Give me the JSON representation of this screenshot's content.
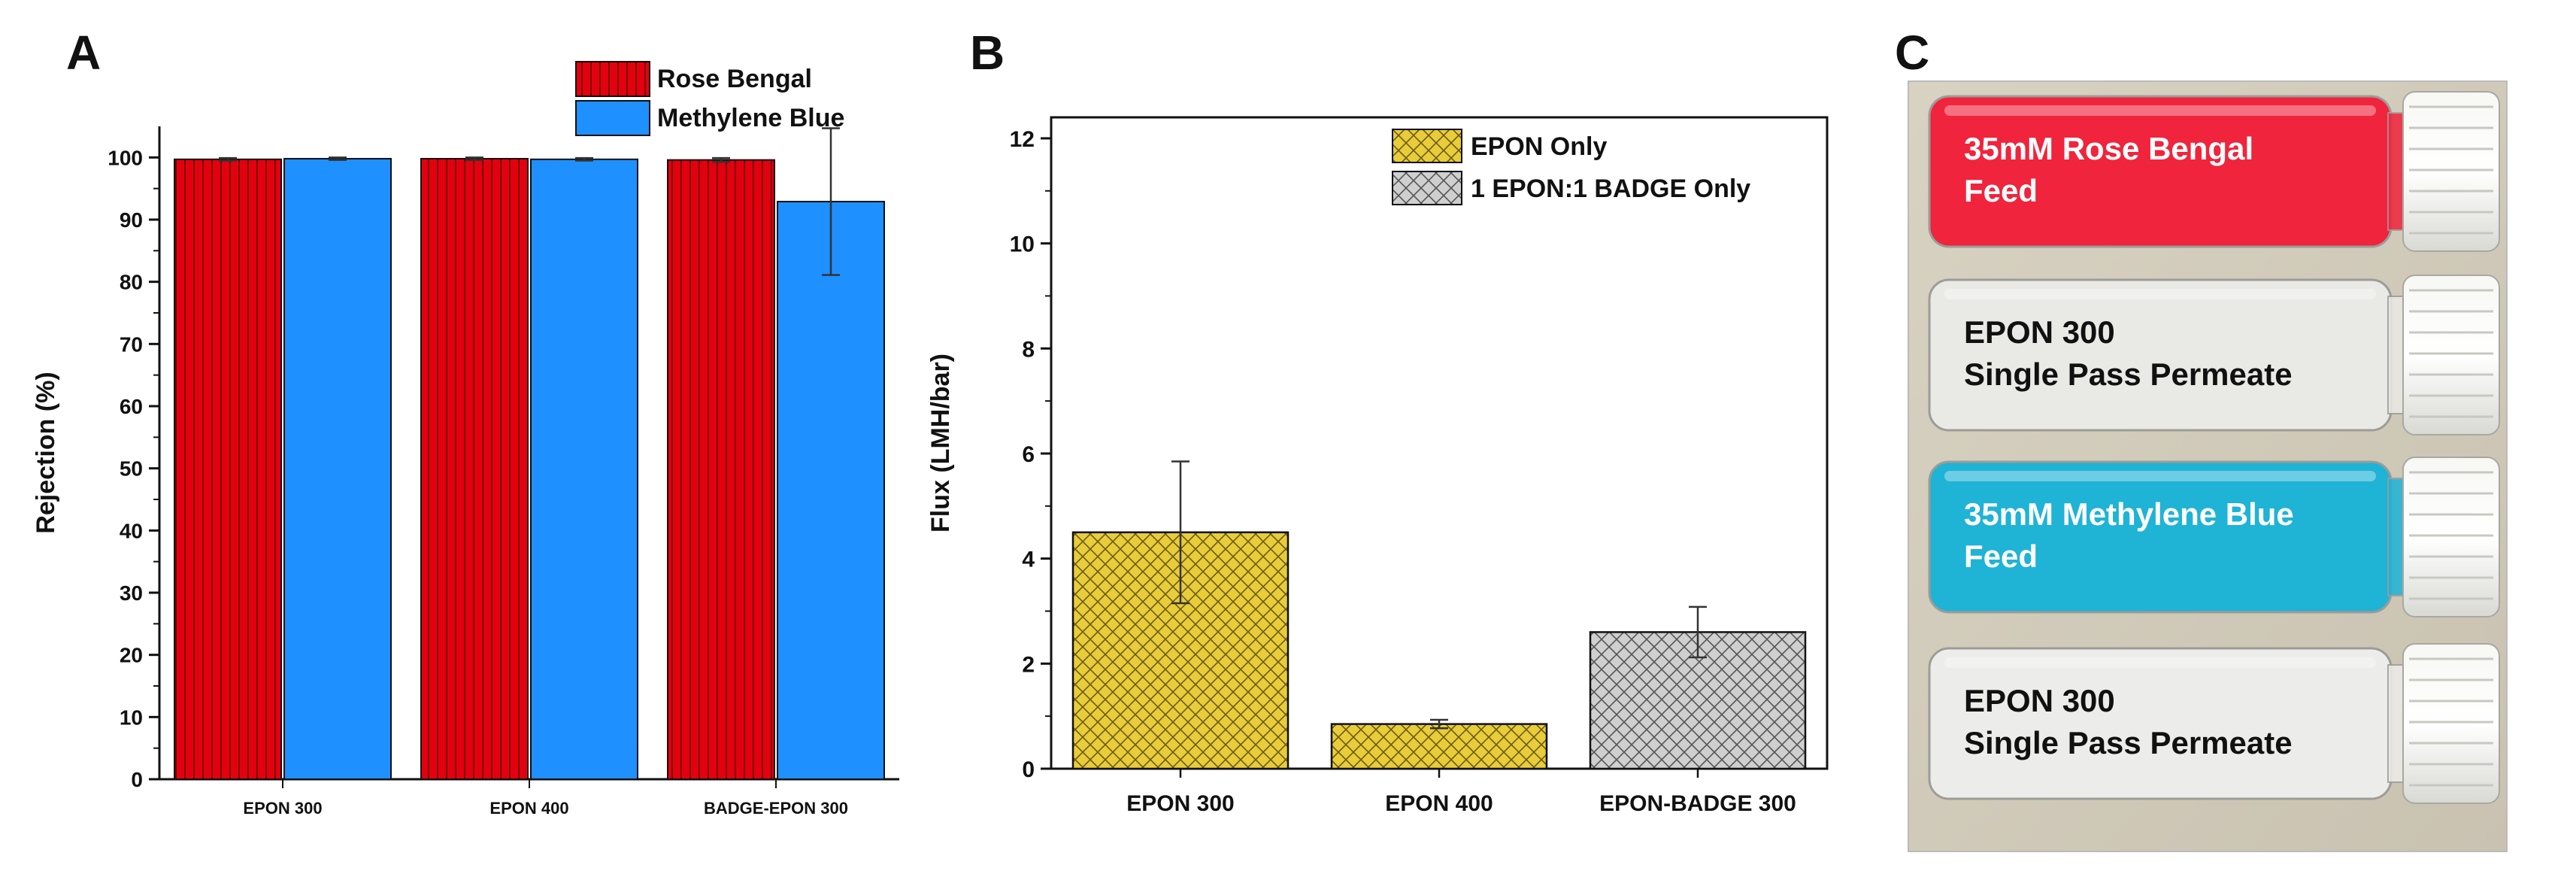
{
  "panels": {
    "a_letter": "A",
    "b_letter": "B",
    "c_letter": "C"
  },
  "chart_data": [
    {
      "panel": "A",
      "type": "bar",
      "title": "",
      "xlabel": "",
      "ylabel": "Rejection (%)",
      "ylim": [
        0,
        105
      ],
      "yticks": [
        0,
        10,
        20,
        30,
        40,
        50,
        60,
        70,
        80,
        90,
        100
      ],
      "categories": [
        "EPON 300",
        "EPON 400",
        "BADGE-EPON 300"
      ],
      "legend_position": "top-right",
      "series": [
        {
          "name": "Rose Bengal",
          "color": "#e3000f",
          "pattern": "vertical-lines",
          "values": [
            99.7,
            99.8,
            99.6
          ],
          "errors": [
            0.2,
            0.2,
            0.3
          ]
        },
        {
          "name": "Methylene Blue",
          "color": "#1e90ff",
          "pattern": "solid",
          "values": [
            99.8,
            99.7,
            92.9
          ],
          "errors": [
            0.2,
            0.2,
            11.8
          ]
        }
      ]
    },
    {
      "panel": "B",
      "type": "bar",
      "title": "",
      "xlabel": "",
      "ylabel": "Flux (LMH/bar)",
      "ylim": [
        0,
        12.4
      ],
      "yticks": [
        0,
        2,
        4,
        6,
        8,
        10,
        12
      ],
      "categories": [
        "EPON 300",
        "EPON 400",
        "EPON-BADGE 300"
      ],
      "legend_position": "top-right",
      "series": [
        {
          "name": "EPON Only",
          "color": "#e8cc3a",
          "pattern": "crosshatch",
          "values": [
            4.5,
            0.85,
            null
          ],
          "errors": [
            1.35,
            0.08,
            null
          ]
        },
        {
          "name": "1 EPON:1 BADGE Only",
          "color": "#cccccc",
          "pattern": "crosshatch",
          "values": [
            null,
            null,
            2.6
          ],
          "errors": [
            null,
            null,
            0.48
          ]
        }
      ]
    }
  ],
  "photo": {
    "vials": [
      {
        "line1": "35mM Rose Bengal",
        "line2": "Feed",
        "liquid": "#f0243c",
        "text_color": "#ffffff"
      },
      {
        "line1": "EPON 300",
        "line2": "Single Pass Permeate",
        "liquid": "#e9e9e6",
        "text_color": "#111111"
      },
      {
        "line1": "35mM Methylene Blue",
        "line2": "Feed",
        "liquid": "#1fb3d6",
        "text_color": "#ffffff"
      },
      {
        "line1": "EPON 300",
        "line2": "Single Pass Permeate",
        "liquid": "#ececea",
        "text_color": "#111111"
      }
    ]
  }
}
